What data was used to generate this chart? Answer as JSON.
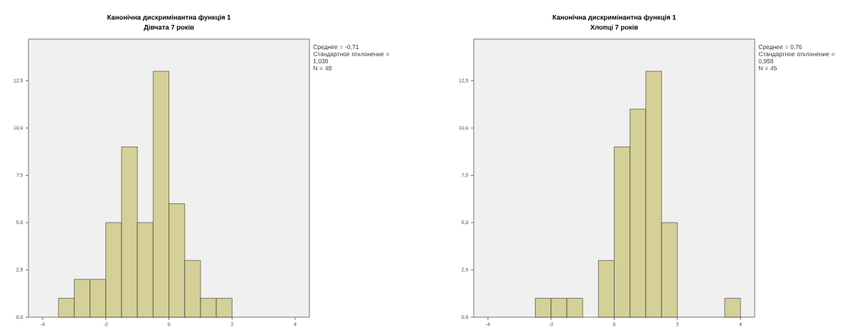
{
  "chart_data": [
    {
      "type": "histogram",
      "title": "Канонічна дискримінантна функція 1",
      "subtitle": "Дівчата 7 років",
      "bins": [
        -3.5,
        -3.0,
        -2.5,
        -2.0,
        -1.5,
        -1.0,
        -0.5,
        0.0,
        0.5,
        1.0,
        1.5,
        2.0
      ],
      "values": [
        1,
        2,
        2,
        5,
        9,
        5,
        13,
        6,
        3,
        1,
        1
      ],
      "color": "#d4d097",
      "xlim": [
        -4.45,
        4.45
      ],
      "ylim": [
        0,
        14.7
      ],
      "xticks": [
        -4,
        -2,
        0,
        2,
        4
      ],
      "yticks": [
        {
          "value": 0,
          "label": "0,0"
        },
        {
          "value": 2.5,
          "label": "2,5"
        },
        {
          "value": 5,
          "label": "5,0"
        },
        {
          "value": 7.5,
          "label": "7,5"
        },
        {
          "value": 10,
          "label": "10,0"
        },
        {
          "value": 12.5,
          "label": "12,5"
        }
      ],
      "annotations": [
        "Среднее = -0,71",
        "Стандартное отклонение = 1,038",
        "N = 48"
      ]
    },
    {
      "type": "histogram",
      "title": "Канонічна дискримінантна функція 1",
      "subtitle": "Хлопці 7 років",
      "bins": [
        -2.5,
        -2.0,
        -1.5,
        -1.0,
        -0.5,
        0.0,
        0.5,
        1.0,
        1.5,
        2.0,
        2.5,
        3.0,
        3.5,
        4.0
      ],
      "values": [
        1,
        1,
        1,
        0,
        3,
        9,
        11,
        13,
        5,
        0,
        0,
        0,
        1
      ],
      "color": "#d4d097",
      "xlim": [
        -4.45,
        4.45
      ],
      "ylim": [
        0,
        14.7
      ],
      "xticks": [
        -4,
        -2,
        0,
        2,
        4
      ],
      "yticks": [
        {
          "value": 0,
          "label": "0,0"
        },
        {
          "value": 2.5,
          "label": "2,5"
        },
        {
          "value": 5,
          "label": "5,0"
        },
        {
          "value": 7.5,
          "label": "7,5"
        },
        {
          "value": 10,
          "label": "10,0"
        },
        {
          "value": 12.5,
          "label": "12,5"
        }
      ],
      "annotations": [
        "Среднее = 0,76",
        "Стандартное отклонение = 0,958",
        "N = 45"
      ]
    }
  ]
}
